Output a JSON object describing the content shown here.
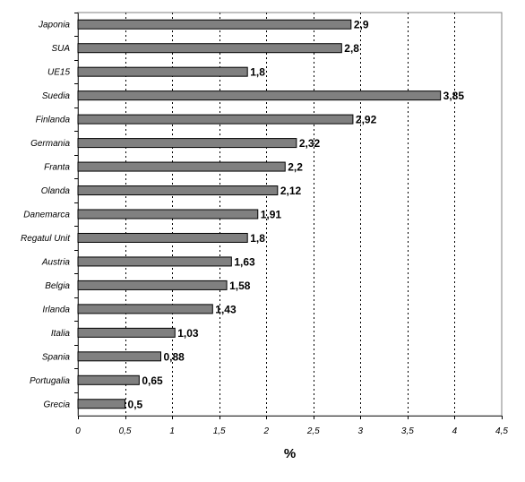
{
  "chart_data": {
    "type": "bar",
    "orientation": "horizontal",
    "categories": [
      "Japonia",
      "SUA",
      "UE15",
      "Suedia",
      "Finlanda",
      "Germania",
      "Franta",
      "Olanda",
      "Danemarca",
      "Regatul Unit",
      "Austria",
      "Belgia",
      "Irlanda",
      "Italia",
      "Spania",
      "Portugalia",
      "Grecia"
    ],
    "values": [
      2.9,
      2.8,
      1.8,
      3.85,
      2.92,
      2.32,
      2.2,
      2.12,
      1.91,
      1.8,
      1.63,
      1.58,
      1.43,
      1.03,
      0.88,
      0.65,
      0.5
    ],
    "data_labels": [
      "2,9",
      "2,8",
      "1,8",
      "3,85",
      "2,92",
      "2,32",
      "2,2",
      "2,12",
      "1,91",
      "1,8",
      "1,63",
      "1,58",
      "1,43",
      "1,03",
      "0,88",
      "0,65",
      "0,5"
    ],
    "xlim": [
      0,
      4.5
    ],
    "x_ticks": [
      0,
      0.5,
      1,
      1.5,
      2,
      2.5,
      3,
      3.5,
      4,
      4.5
    ],
    "x_tick_labels": [
      "0",
      "0,5",
      "1",
      "1,5",
      "2",
      "2,5",
      "3",
      "3,5",
      "4",
      "4,5"
    ],
    "xlabel": "%",
    "title": "",
    "grid": "vertical dotted",
    "legend": "none",
    "colors": {
      "bar_fill": "#808080",
      "bar_stroke": "#000000",
      "grid": "#000000",
      "frame": "#808080"
    }
  }
}
